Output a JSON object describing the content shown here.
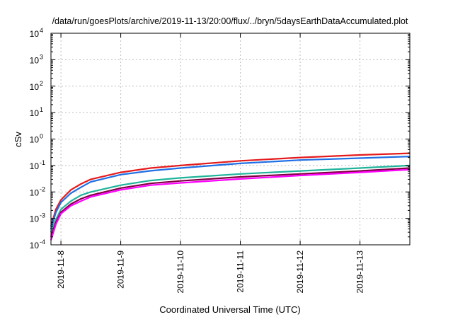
{
  "chart_data": {
    "type": "line",
    "title": "/data/run/goesPlots/archive/2019-11-13/20:00/flux/../bryn/5daysEarthDataAccumulated.plot",
    "xlabel": "Coordinated Universal Time (UTC)",
    "ylabel": "cSv",
    "yscale": "log",
    "ylim": [
      0.0001,
      10000
    ],
    "xlim": [
      "2019-11-07T20:00",
      "2019-11-13T20:00"
    ],
    "grid": true,
    "legend": "none",
    "x_ticks": [
      "2019-11-8",
      "2019-11-9",
      "2019-11-10",
      "2019-11-11",
      "2019-11-12",
      "2019-11-13"
    ],
    "y_ticks": [
      {
        "base": "10",
        "exp": "-4"
      },
      {
        "base": "10",
        "exp": "-3"
      },
      {
        "base": "10",
        "exp": "-2"
      },
      {
        "base": "10",
        "exp": "-1"
      },
      {
        "base": "10",
        "exp": "0"
      },
      {
        "base": "10",
        "exp": "1"
      },
      {
        "base": "10",
        "exp": "2"
      },
      {
        "base": "10",
        "exp": "3"
      },
      {
        "base": "10",
        "exp": "4"
      }
    ],
    "x": [
      "2019-11-07T20:00",
      "2019-11-07T22:00",
      "2019-11-08T00:00",
      "2019-11-08T04:00",
      "2019-11-08T08:00",
      "2019-11-08T12:00",
      "2019-11-09T00:00",
      "2019-11-09T12:00",
      "2019-11-10T00:00",
      "2019-11-11T00:00",
      "2019-11-12T00:00",
      "2019-11-13T00:00",
      "2019-11-13T20:00"
    ],
    "series": [
      {
        "color": "#e41a1c",
        "values": [
          0.0005,
          0.0022,
          0.005,
          0.012,
          0.02,
          0.03,
          0.055,
          0.08,
          0.1,
          0.15,
          0.2,
          0.25,
          0.29
        ]
      },
      {
        "color": "#1f6fe5",
        "values": [
          0.0004,
          0.0017,
          0.004,
          0.009,
          0.015,
          0.024,
          0.045,
          0.063,
          0.08,
          0.12,
          0.16,
          0.19,
          0.22
        ]
      },
      {
        "color": "#20b39b",
        "values": [
          0.0003,
          0.0009,
          0.0022,
          0.0045,
          0.0075,
          0.01,
          0.018,
          0.027,
          0.034,
          0.048,
          0.062,
          0.08,
          0.1
        ]
      },
      {
        "color": "#800040",
        "values": [
          0.0002,
          0.0007,
          0.0017,
          0.0035,
          0.0055,
          0.0075,
          0.014,
          0.021,
          0.026,
          0.037,
          0.048,
          0.062,
          0.08
        ]
      },
      {
        "color": "#ff00ff",
        "values": [
          0.00015,
          0.0006,
          0.0015,
          0.003,
          0.0045,
          0.0065,
          0.012,
          0.018,
          0.022,
          0.031,
          0.042,
          0.055,
          0.07
        ]
      }
    ]
  }
}
